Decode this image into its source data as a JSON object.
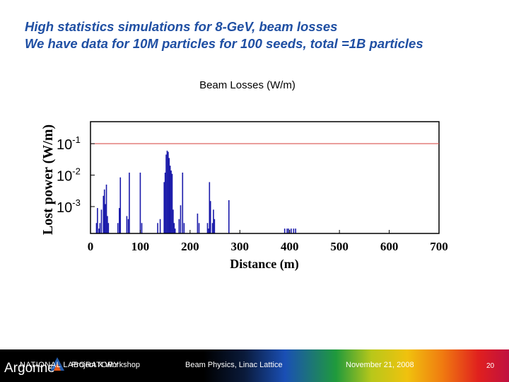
{
  "slide": {
    "title_line1": "High statistics simulations for 8-GeV, beam losses",
    "title_line2": "We have data for 10M particles for 100 seeds, total =1B particles"
  },
  "footer": {
    "logo_text": "Argonne",
    "logo_subtext": "NATIONAL LABORATORY",
    "workshop": "Project X Workshop",
    "topic": "Beam Physics, Linac Lattice",
    "date": "November 21, 2008",
    "page": "20"
  },
  "colors": {
    "title": "#1f4fa3",
    "series": "#1a1aaa",
    "limit_line": "#d9534f",
    "frame": "#000000"
  },
  "chart_data": {
    "type": "bar",
    "title": "Beam Losses (W/m)",
    "xlabel": "Distance (m)",
    "ylabel": "Lost power (W/m)",
    "xlim": [
      0,
      700
    ],
    "ylim": [
      0.00014,
      0.5
    ],
    "yscale": "log",
    "xticks": [
      "0",
      "100",
      "200",
      "300",
      "400",
      "500",
      "600",
      "700"
    ],
    "yticks": [
      {
        "value": 0.1,
        "base": "10",
        "exp": "-1"
      },
      {
        "value": 0.01,
        "base": "10",
        "exp": "-2"
      },
      {
        "value": 0.001,
        "base": "10",
        "exp": "-3"
      }
    ],
    "limit_line": {
      "y": 0.1
    },
    "series": [
      {
        "x": [
          12,
          14,
          17,
          19,
          22,
          26,
          28,
          30,
          32,
          34,
          36,
          55,
          58,
          60,
          73,
          76,
          78,
          100,
          103,
          135,
          140,
          148,
          150,
          152,
          154,
          156,
          158,
          160,
          162,
          164,
          166,
          168,
          170,
          178,
          181,
          185,
          188,
          215,
          218,
          235,
          237,
          239,
          241,
          245,
          247,
          249,
          278,
          390,
          395,
          398,
          403,
          408,
          412
        ],
        "y": [
          0.0003,
          0.0009,
          0.0002,
          0.0003,
          0.0008,
          0.0022,
          0.0035,
          0.0012,
          0.005,
          0.0005,
          0.0003,
          0.0003,
          0.0009,
          0.0085,
          0.0005,
          0.0004,
          0.012,
          0.012,
          0.0003,
          0.0003,
          0.0004,
          0.006,
          0.012,
          0.045,
          0.06,
          0.055,
          0.035,
          0.02,
          0.014,
          0.011,
          0.0008,
          0.0003,
          0.0002,
          0.0004,
          0.0011,
          0.012,
          0.0003,
          0.0006,
          0.0003,
          0.0003,
          0.0002,
          0.006,
          0.0015,
          0.0003,
          0.0008,
          0.0004,
          0.0016,
          0.0002,
          0.0002,
          0.0002,
          0.0002,
          0.0002,
          0.0002
        ]
      }
    ]
  }
}
